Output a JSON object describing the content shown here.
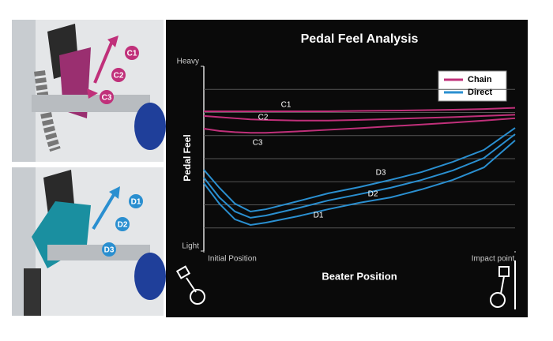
{
  "chart_data": {
    "type": "line",
    "title": "Pedal Feel Analysis",
    "x_label": "Beater Position",
    "y_label": "Pedal Feel",
    "x": [
      0,
      0.5,
      1,
      1.5,
      2,
      3,
      4,
      5,
      6,
      7,
      8,
      9,
      10
    ],
    "xlim": [
      0,
      10
    ],
    "xticks": [
      {
        "value": 0,
        "label": "Initial Position"
      },
      {
        "value": 10,
        "label": "Impact point"
      }
    ],
    "ylim": [
      0,
      8
    ],
    "yticks": [
      {
        "value": 8,
        "label": "Heavy"
      },
      {
        "value": 0,
        "label": "Light"
      }
    ],
    "grid": true,
    "legend": [
      {
        "name": "Chain",
        "color": "#c0307a"
      },
      {
        "name": "Direct",
        "color": "#2a8fd0"
      }
    ],
    "series": [
      {
        "name": "C1",
        "color": "#c0307a",
        "values": [
          6.05,
          6.05,
          6.05,
          6.05,
          6.05,
          6.05,
          6.05,
          6.07,
          6.08,
          6.1,
          6.12,
          6.15,
          6.2
        ]
      },
      {
        "name": "C2",
        "color": "#c0307a",
        "values": [
          5.85,
          5.8,
          5.75,
          5.7,
          5.68,
          5.65,
          5.65,
          5.68,
          5.72,
          5.76,
          5.8,
          5.85,
          5.9
        ]
      },
      {
        "name": "C3",
        "color": "#c0307a",
        "values": [
          5.3,
          5.2,
          5.15,
          5.12,
          5.12,
          5.18,
          5.25,
          5.32,
          5.4,
          5.48,
          5.56,
          5.65,
          5.75
        ]
      },
      {
        "name": "D1",
        "color": "#2a8fd0",
        "values": [
          2.94,
          2.05,
          1.37,
          1.13,
          1.23,
          1.5,
          1.81,
          2.09,
          2.32,
          2.67,
          3.08,
          3.62,
          4.79
        ]
      },
      {
        "name": "D2",
        "color": "#2a8fd0",
        "values": [
          3.18,
          2.32,
          1.71,
          1.44,
          1.54,
          1.85,
          2.19,
          2.46,
          2.74,
          3.08,
          3.49,
          4.03,
          5.06
        ]
      },
      {
        "name": "D3",
        "color": "#2a8fd0",
        "values": [
          3.52,
          2.74,
          2.05,
          1.71,
          1.81,
          2.15,
          2.5,
          2.77,
          3.08,
          3.42,
          3.86,
          4.38,
          5.33
        ]
      }
    ]
  },
  "photos": {
    "chain_labels": [
      "C1",
      "C2",
      "C3"
    ],
    "direct_labels": [
      "D1",
      "D2",
      "D3"
    ]
  }
}
